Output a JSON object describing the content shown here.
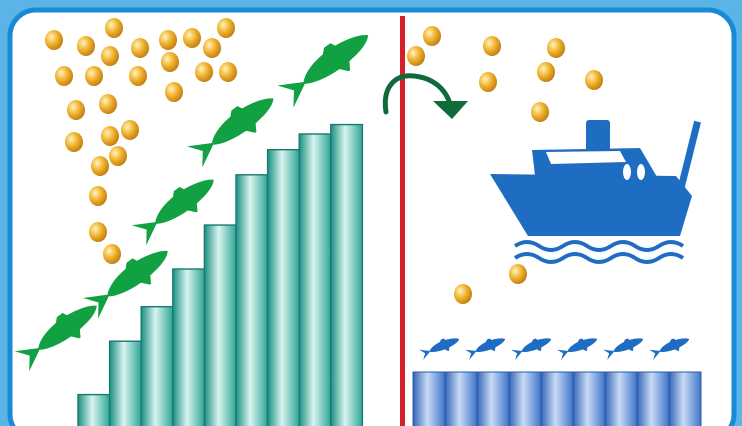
{
  "colors": {
    "background": "#5ab4e6",
    "frame_border": "#1a8ad4",
    "panel": "#ffffff",
    "divider": "#d4202a",
    "green_fish": "#12a142",
    "arrow": "#0f6b3c",
    "left_bars": "#2fa596",
    "right_bars": "#3d74c8",
    "blue_fish": "#1f6dc2",
    "ship": "#1f6dc2",
    "coin": "#e9a31c"
  },
  "diagram": {
    "left_bar_levels": [
      0.1,
      0.27,
      0.38,
      0.5,
      0.64,
      0.8,
      0.88,
      0.93,
      0.96
    ],
    "right_bar_count": 9,
    "left_coin_count": 34,
    "right_coin_count": 10,
    "green_fish_count": 5,
    "blue_fish_count": 6,
    "icons": [
      "fish-icon",
      "coin-icon",
      "fishing-boat-icon",
      "curved-arrow-icon",
      "wave-icon"
    ]
  }
}
